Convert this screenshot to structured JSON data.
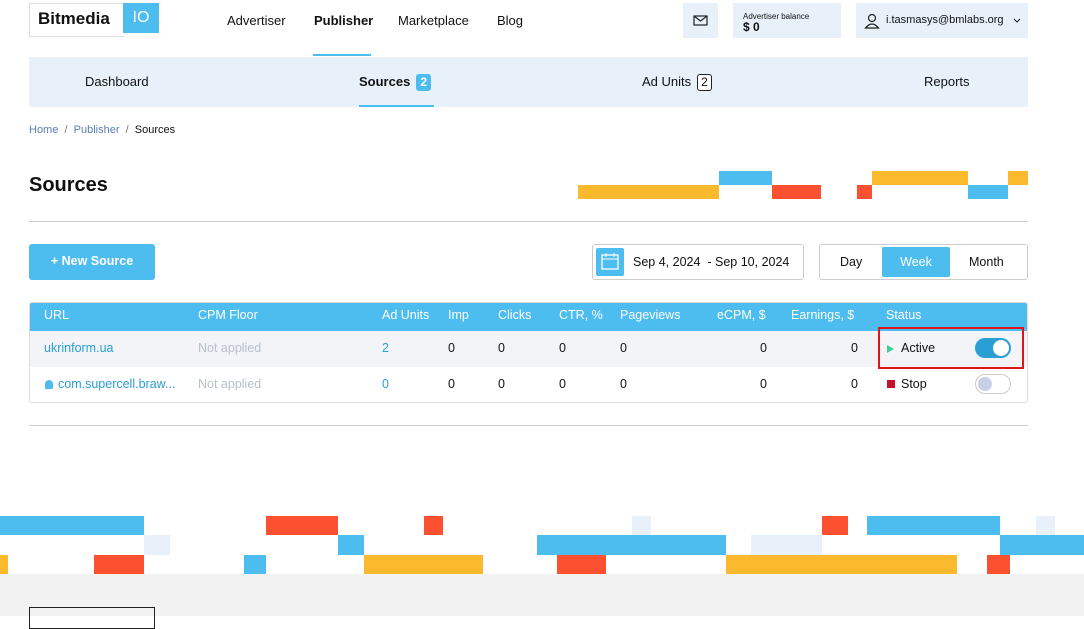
{
  "header": {
    "logo": "Bitmedia",
    "logo_badge": "IO",
    "nav": [
      "Advertiser",
      "Publisher",
      "Marketplace",
      "Blog"
    ],
    "balance_label": "Advertiser balance",
    "balance_value": "$ 0",
    "user": "i.tasmasys@bmlabs.org"
  },
  "tabs": [
    {
      "label": "Dashboard"
    },
    {
      "label": "Sources",
      "badge": "2"
    },
    {
      "label": "Ad Units",
      "badge": "2"
    },
    {
      "label": "Reports"
    }
  ],
  "breadcrumb": [
    "Home",
    "Publisher",
    "Sources"
  ],
  "title": "Sources",
  "new_button": "+ New Source",
  "date_range": "Sep 4, 2024  - Sep 10, 2024",
  "periods": [
    "Day",
    "Week",
    "Month"
  ],
  "table": {
    "columns": [
      "URL",
      "CPM Floor",
      "Ad Units",
      "Imp",
      "Clicks",
      "CTR, %",
      "Pageviews",
      "eCPM, $",
      "Earnings, $",
      "Status"
    ],
    "rows": [
      [
        "ukrinform.ua",
        "Not applied",
        "2",
        "0",
        "0",
        "0",
        "0",
        "0",
        "0",
        "Active"
      ],
      [
        "com.supercell.braw...",
        "Not applied",
        "0",
        "0",
        "0",
        "0",
        "0",
        "0",
        "0",
        "Stop"
      ]
    ]
  }
}
